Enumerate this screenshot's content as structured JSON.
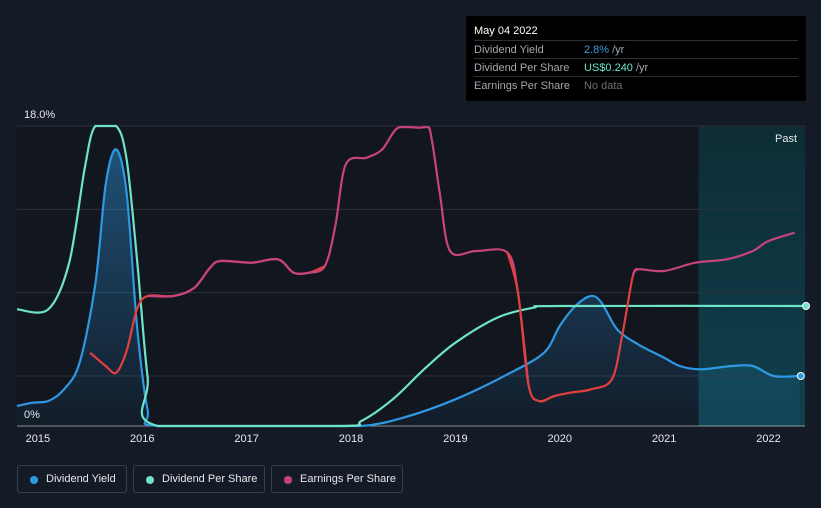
{
  "tooltip": {
    "date": "May 04 2022",
    "rows": [
      {
        "label": "Dividend Yield",
        "value": "2.8%",
        "unit": "/yr",
        "color": "#3a9de0"
      },
      {
        "label": "Dividend Per Share",
        "value": "US$0.240",
        "unit": "/yr",
        "color": "#6fe3c8"
      },
      {
        "label": "Earnings Per Share",
        "value": "No data",
        "unit": "",
        "color": "#6b6e75"
      }
    ]
  },
  "colors": {
    "background": "#151b26",
    "dividend_yield": "#2f98e2",
    "dividend_per_share": "#6fe3c8",
    "earnings_per_share_pos": "#c7447b",
    "earnings_per_share_neg": "#e0403f",
    "past_region": "#0d3340"
  },
  "chart_data": {
    "type": "line",
    "title": "",
    "xlabel": "",
    "ylabel": "",
    "y_tick_labels": [
      "18.0%",
      "0%"
    ],
    "ylim": [
      0,
      18
    ],
    "xlim": [
      2014.8,
      2022.35
    ],
    "x_tick_labels": [
      "2015",
      "2016",
      "2017",
      "2018",
      "2019",
      "2020",
      "2021",
      "2022"
    ],
    "x_tick_values": [
      2015,
      2016,
      2017,
      2018,
      2019,
      2020,
      2021,
      2022
    ],
    "past_region": {
      "label": "Past",
      "from": 2021.33,
      "to": 2022.35
    },
    "series": [
      {
        "name": "Dividend Yield",
        "key": "dividend_yield",
        "points": [
          [
            2014.8,
            1.2
          ],
          [
            2014.95,
            1.4
          ],
          [
            2015.1,
            1.5
          ],
          [
            2015.25,
            2.2
          ],
          [
            2015.4,
            3.8
          ],
          [
            2015.55,
            8.5
          ],
          [
            2015.65,
            14.5
          ],
          [
            2015.75,
            16.6
          ],
          [
            2015.85,
            14.0
          ],
          [
            2015.95,
            6.0
          ],
          [
            2016.05,
            1.0
          ],
          [
            2016.15,
            0
          ],
          [
            2017.5,
            0
          ],
          [
            2018.1,
            0
          ],
          [
            2018.5,
            0.5
          ],
          [
            2019.0,
            1.6
          ],
          [
            2019.5,
            3.1
          ],
          [
            2019.85,
            4.4
          ],
          [
            2020.0,
            6.0
          ],
          [
            2020.15,
            7.2
          ],
          [
            2020.3,
            7.8
          ],
          [
            2020.4,
            7.4
          ],
          [
            2020.55,
            5.8
          ],
          [
            2020.75,
            4.9
          ],
          [
            2021.0,
            4.1
          ],
          [
            2021.15,
            3.6
          ],
          [
            2021.35,
            3.4
          ],
          [
            2021.65,
            3.6
          ],
          [
            2021.85,
            3.6
          ],
          [
            2022.05,
            3.0
          ],
          [
            2022.3,
            3.0
          ]
        ]
      },
      {
        "name": "Dividend Per Share",
        "key": "dividend_per_share",
        "points": [
          [
            2014.8,
            7.0
          ],
          [
            2015.1,
            7.0
          ],
          [
            2015.3,
            9.8
          ],
          [
            2015.45,
            15.5
          ],
          [
            2015.55,
            18.0
          ],
          [
            2015.75,
            18.0
          ],
          [
            2015.85,
            16.0
          ],
          [
            2015.95,
            10.0
          ],
          [
            2016.05,
            3.0
          ],
          [
            2016.15,
            0
          ],
          [
            2017.9,
            0
          ],
          [
            2018.1,
            0.3
          ],
          [
            2018.4,
            1.6
          ],
          [
            2018.7,
            3.4
          ],
          [
            2019.0,
            5.0
          ],
          [
            2019.4,
            6.5
          ],
          [
            2019.75,
            7.1
          ],
          [
            2020.0,
            7.2
          ],
          [
            2022.35,
            7.2
          ]
        ]
      },
      {
        "name": "Earnings Per Share",
        "key": "earnings_per_share",
        "segments": [
          {
            "color_key": "earnings_per_share_neg",
            "points": [
              [
                2015.5,
                4.4
              ],
              [
                2015.65,
                3.6
              ],
              [
                2015.75,
                3.2
              ],
              [
                2015.85,
                4.5
              ],
              [
                2015.95,
                7.0
              ],
              [
                2016.05,
                7.8
              ],
              [
                2016.3,
                7.8
              ],
              [
                2016.5,
                8.3
              ],
              [
                2016.65,
                9.5
              ],
              [
                2016.75,
                9.9
              ],
              [
                2017.05,
                9.8
              ],
              [
                2017.3,
                10.0
              ],
              [
                2017.45,
                9.2
              ],
              [
                2017.6,
                9.2
              ],
              [
                2017.75,
                9.6
              ]
            ]
          },
          {
            "color_key": "earnings_per_share_pos",
            "points": [
              [
                2016.05,
                7.8
              ],
              [
                2016.3,
                7.8
              ],
              [
                2016.5,
                8.3
              ],
              [
                2016.65,
                9.5
              ],
              [
                2016.75,
                9.9
              ],
              [
                2017.05,
                9.8
              ],
              [
                2017.3,
                10.0
              ],
              [
                2017.45,
                9.2
              ],
              [
                2017.6,
                9.2
              ],
              [
                2017.75,
                9.6
              ],
              [
                2017.85,
                12.0
              ],
              [
                2017.95,
                15.7
              ],
              [
                2018.15,
                16.1
              ],
              [
                2018.3,
                16.6
              ],
              [
                2018.45,
                17.9
              ],
              [
                2018.65,
                17.9
              ],
              [
                2018.75,
                17.9
              ],
              [
                2018.85,
                14.0
              ],
              [
                2018.95,
                10.5
              ],
              [
                2019.2,
                10.5
              ],
              [
                2019.5,
                10.4
              ],
              [
                2019.6,
                8.0
              ],
              [
                2019.7,
                2.5
              ]
            ]
          },
          {
            "color_key": "earnings_per_share_neg",
            "points": [
              [
                2019.5,
                10.4
              ],
              [
                2019.6,
                8.0
              ],
              [
                2019.7,
                2.5
              ],
              [
                2019.8,
                1.5
              ],
              [
                2019.95,
                1.8
              ],
              [
                2020.1,
                2.0
              ],
              [
                2020.3,
                2.2
              ],
              [
                2020.5,
                2.8
              ],
              [
                2020.6,
                5.5
              ],
              [
                2020.7,
                9.0
              ],
              [
                2020.75,
                9.4
              ]
            ]
          },
          {
            "color_key": "earnings_per_share_pos",
            "points": [
              [
                2020.7,
                9.0
              ],
              [
                2020.75,
                9.4
              ],
              [
                2021.0,
                9.3
              ],
              [
                2021.3,
                9.8
              ],
              [
                2021.6,
                10.0
              ],
              [
                2021.85,
                10.5
              ],
              [
                2022.0,
                11.1
              ],
              [
                2022.25,
                11.6
              ]
            ]
          }
        ]
      }
    ]
  },
  "legend": [
    {
      "label": "Dividend Yield",
      "color_key": "dividend_yield"
    },
    {
      "label": "Dividend Per Share",
      "color_key": "dividend_per_share"
    },
    {
      "label": "Earnings Per Share",
      "color_key": "earnings_per_share_pos"
    }
  ]
}
